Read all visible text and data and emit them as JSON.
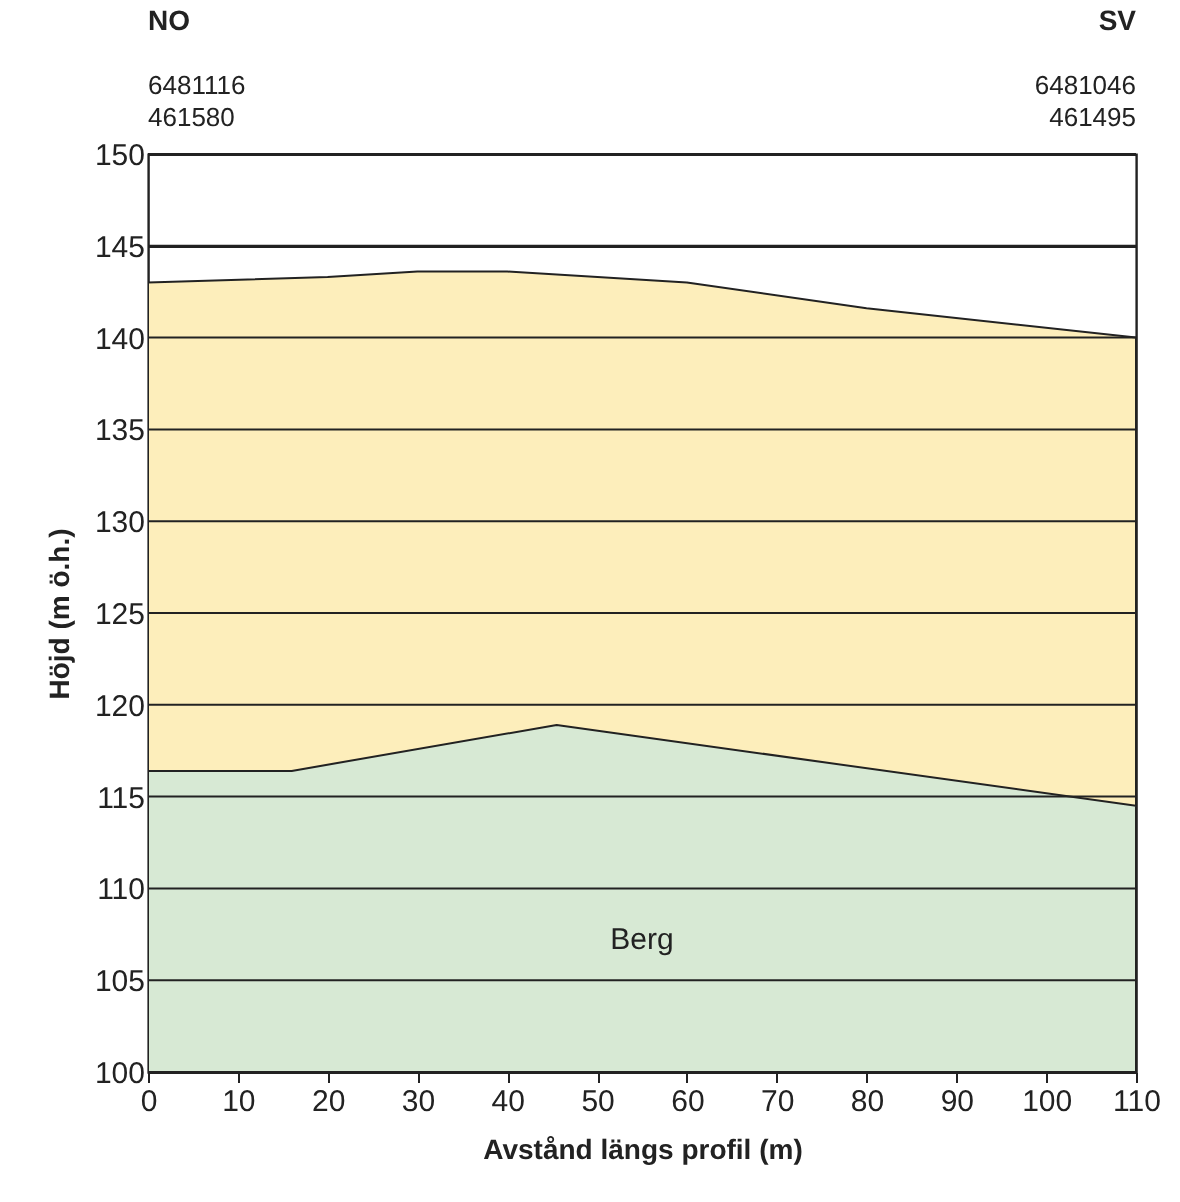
{
  "chart_data": {
    "type": "area",
    "xlabel": "Avstånd längs profil (m)",
    "ylabel": "Höjd (m ö.h.)",
    "series": [
      {
        "color": "#fdeebb",
        "x": [
          0,
          20,
          30,
          40,
          60,
          80,
          110
        ],
        "values": [
          143,
          143.3,
          143.6,
          143.6,
          143,
          141.6,
          140
        ]
      },
      {
        "name": "Berg",
        "color": "#d7e9d4",
        "x": [
          0,
          16,
          45.5,
          110
        ],
        "values": [
          116.4,
          116.4,
          118.9,
          114.5
        ]
      }
    ],
    "xlim": [
      0,
      110
    ],
    "xticks": [
      0,
      10,
      20,
      30,
      40,
      50,
      60,
      70,
      80,
      90,
      100,
      110
    ],
    "ylim": [
      100,
      150
    ],
    "yticks": [
      100,
      105,
      110,
      115,
      120,
      125,
      130,
      135,
      140,
      145,
      150
    ],
    "grid": "y",
    "annotations": [
      "NO",
      "6481116",
      "461580",
      "SV",
      "6481046",
      "461495"
    ]
  }
}
